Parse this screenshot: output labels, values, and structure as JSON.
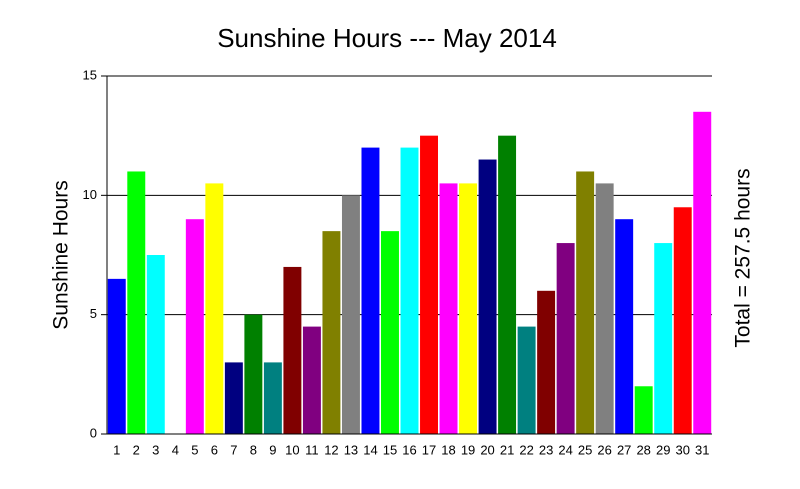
{
  "chart_data": {
    "type": "bar",
    "title": "Sunshine Hours --- May 2014",
    "y_label": "Sunshine Hours",
    "annotation": "Total = 257.5 hours",
    "categories": [
      "1",
      "2",
      "3",
      "4",
      "5",
      "6",
      "7",
      "8",
      "9",
      "10",
      "11",
      "12",
      "13",
      "14",
      "15",
      "16",
      "17",
      "18",
      "19",
      "20",
      "21",
      "22",
      "23",
      "24",
      "25",
      "26",
      "27",
      "28",
      "29",
      "30",
      "31"
    ],
    "values": [
      6.5,
      11,
      7.5,
      0,
      9,
      10.5,
      3,
      5,
      3,
      7,
      4.5,
      8.5,
      10,
      12,
      8.5,
      12,
      12.5,
      10.5,
      10.5,
      11.5,
      12.5,
      4.5,
      6,
      8,
      11,
      10.5,
      9,
      2,
      8,
      9.5,
      13.5
    ],
    "colors": [
      "#0000ff",
      "#00ff00",
      "#00ffff",
      "#ff0000",
      "#ff00ff",
      "#ffff00",
      "#000080",
      "#008000",
      "#008080",
      "#800000",
      "#800080",
      "#808000",
      "#808080",
      "#0000ff",
      "#00ff00",
      "#00ffff",
      "#ff0000",
      "#ff00ff",
      "#ffff00",
      "#000080",
      "#008000",
      "#008080",
      "#800000",
      "#800080",
      "#808000",
      "#808080",
      "#0000ff",
      "#00ff00",
      "#00ffff",
      "#ff0000",
      "#ff00ff"
    ],
    "ylim": [
      0,
      15
    ],
    "yticks": [
      0,
      5,
      10,
      15
    ],
    "grid": true
  }
}
